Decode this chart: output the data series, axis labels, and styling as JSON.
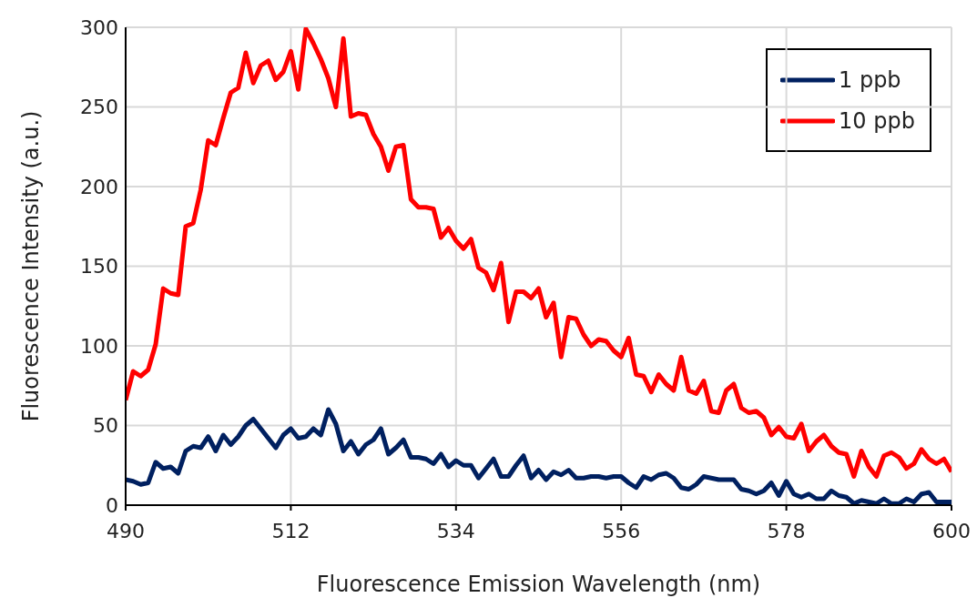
{
  "chart_data": {
    "type": "line",
    "xlabel": "Fluorescence Emission Wavelength (nm)",
    "ylabel": "Fluorescence Intensity (a.u.)",
    "x": [
      490,
      491,
      492,
      493,
      494,
      495,
      496,
      497,
      498,
      499,
      500,
      501,
      502,
      503,
      504,
      505,
      506,
      507,
      508,
      509,
      510,
      511,
      512,
      513,
      514,
      515,
      516,
      517,
      518,
      519,
      520,
      521,
      522,
      523,
      524,
      525,
      526,
      527,
      528,
      529,
      530,
      531,
      532,
      533,
      534,
      535,
      536,
      537,
      538,
      539,
      540,
      541,
      542,
      543,
      544,
      545,
      546,
      547,
      548,
      549,
      550,
      551,
      552,
      553,
      554,
      555,
      556,
      557,
      558,
      559,
      560,
      561,
      562,
      563,
      564,
      565,
      566,
      567,
      568,
      569,
      570,
      571,
      572,
      573,
      574,
      575,
      576,
      577,
      578,
      579,
      580,
      581,
      582,
      583,
      584,
      585,
      586,
      587,
      588,
      589,
      590,
      591,
      592,
      593,
      594,
      595,
      596,
      597,
      598,
      599,
      600
    ],
    "series": [
      {
        "name": "1 ppb",
        "color": "#002060",
        "values": [
          16,
          15,
          13,
          14,
          27,
          23,
          24,
          20,
          34,
          37,
          36,
          43,
          34,
          44,
          38,
          43,
          50,
          54,
          48,
          42,
          36,
          44,
          48,
          42,
          43,
          48,
          44,
          60,
          51,
          34,
          40,
          32,
          38,
          41,
          48,
          32,
          36,
          41,
          30,
          30,
          29,
          26,
          32,
          24,
          28,
          25,
          25,
          17,
          23,
          29,
          18,
          18,
          25,
          31,
          17,
          22,
          16,
          21,
          19,
          22,
          17,
          17,
          18,
          18,
          17,
          18,
          18,
          14,
          11,
          18,
          16,
          19,
          20,
          17,
          11,
          10,
          13,
          18,
          17,
          16,
          16,
          16,
          10,
          9,
          7,
          9,
          14,
          6,
          15,
          7,
          5,
          7,
          4,
          4,
          9,
          6,
          5,
          1,
          3,
          2,
          1,
          4,
          1,
          1,
          4,
          2,
          7,
          8,
          2,
          2,
          2
        ]
      },
      {
        "name": "10 ppb",
        "color": "#ff0000",
        "values": [
          66,
          84,
          81,
          85,
          101,
          136,
          133,
          132,
          175,
          177,
          198,
          229,
          226,
          243,
          259,
          262,
          284,
          265,
          276,
          279,
          267,
          272,
          285,
          261,
          299,
          290,
          280,
          268,
          250,
          293,
          244,
          246,
          245,
          233,
          225,
          210,
          225,
          226,
          192,
          187,
          187,
          186,
          168,
          174,
          166,
          161,
          167,
          149,
          146,
          135,
          152,
          115,
          134,
          134,
          130,
          136,
          118,
          127,
          93,
          118,
          117,
          107,
          100,
          104,
          103,
          97,
          93,
          105,
          82,
          81,
          71,
          82,
          76,
          72,
          93,
          72,
          70,
          78,
          59,
          58,
          72,
          76,
          61,
          58,
          59,
          55,
          44,
          49,
          43,
          42,
          51,
          34,
          40,
          44,
          37,
          33,
          32,
          18,
          34,
          24,
          18,
          31,
          33,
          30,
          23,
          26,
          35,
          29,
          26,
          29,
          21
        ]
      }
    ],
    "xlim": [
      490,
      600
    ],
    "xticks": [
      490,
      512,
      534,
      556,
      578,
      600
    ],
    "ylim": [
      0,
      300
    ],
    "yticks": [
      0,
      50,
      100,
      150,
      200,
      250,
      300
    ],
    "grid": true,
    "legend": "top right",
    "marker": "none",
    "line_style": "solid"
  }
}
